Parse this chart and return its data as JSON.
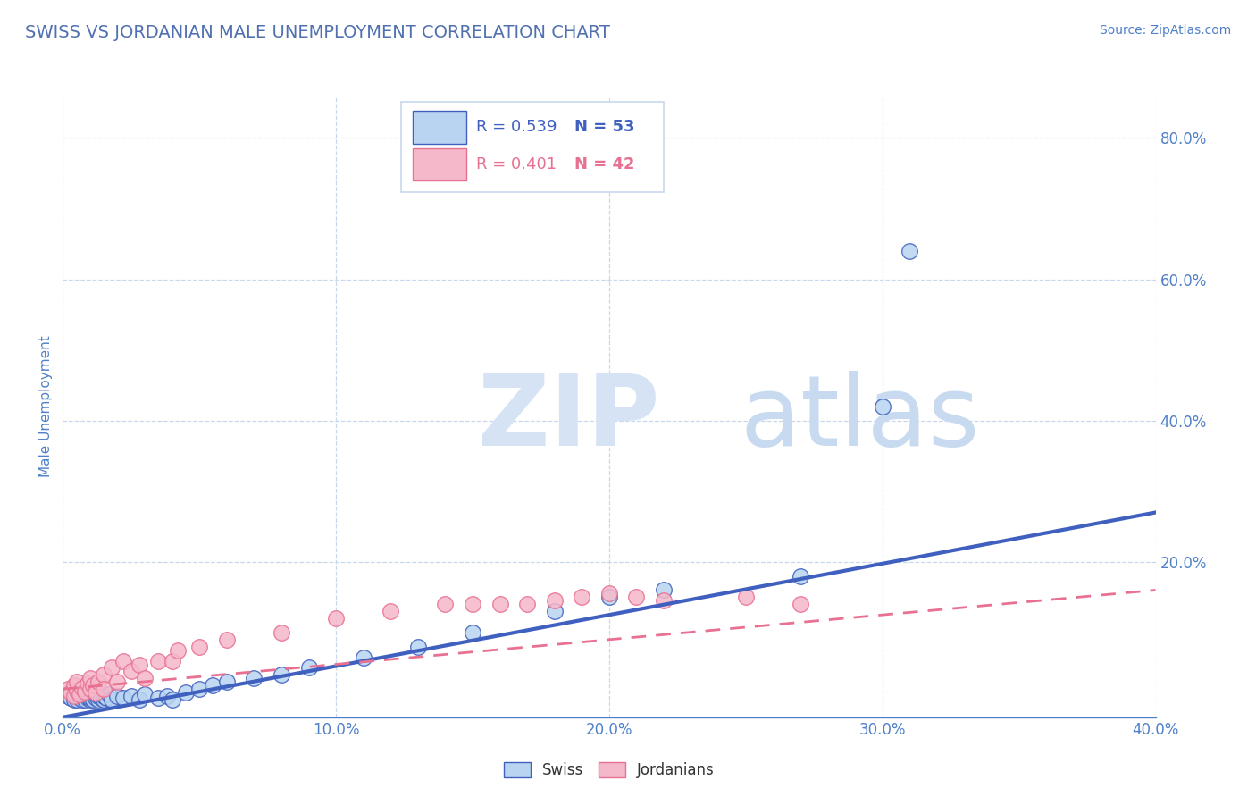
{
  "title": "SWISS VS JORDANIAN MALE UNEMPLOYMENT CORRELATION CHART",
  "source_text": "Source: ZipAtlas.com",
  "ylabel": "Male Unemployment",
  "xlim": [
    0.0,
    0.4
  ],
  "ylim": [
    -0.02,
    0.86
  ],
  "xtick_labels": [
    "0.0%",
    "10.0%",
    "20.0%",
    "30.0%",
    "40.0%"
  ],
  "xtick_vals": [
    0.0,
    0.1,
    0.2,
    0.3,
    0.4
  ],
  "ytick_labels_right": [
    "20.0%",
    "40.0%",
    "60.0%",
    "80.0%"
  ],
  "ytick_vals_right": [
    0.2,
    0.4,
    0.6,
    0.8
  ],
  "legend_r_swiss": "R = 0.539",
  "legend_n_swiss": "N = 53",
  "legend_r_jord": "R = 0.401",
  "legend_n_jord": "N = 42",
  "swiss_color": "#b8d4f0",
  "jordan_color": "#f5b8cb",
  "swiss_line_color": "#4060c0",
  "jordan_line_color": "#e87090",
  "title_color": "#5070b0",
  "axis_color": "#5080c8",
  "grid_color": "#c8d8ec",
  "watermark_zip_color": "#d5e3f5",
  "watermark_atlas_color": "#c8daf0",
  "background_color": "#ffffff",
  "swiss_scatter_x": [
    0.002,
    0.003,
    0.004,
    0.004,
    0.005,
    0.005,
    0.006,
    0.006,
    0.007,
    0.007,
    0.008,
    0.008,
    0.009,
    0.009,
    0.01,
    0.01,
    0.01,
    0.011,
    0.011,
    0.012,
    0.012,
    0.013,
    0.013,
    0.014,
    0.015,
    0.015,
    0.016,
    0.017,
    0.018,
    0.02,
    0.022,
    0.025,
    0.028,
    0.03,
    0.035,
    0.038,
    0.04,
    0.045,
    0.05,
    0.055,
    0.06,
    0.07,
    0.08,
    0.09,
    0.11,
    0.13,
    0.15,
    0.18,
    0.2,
    0.22,
    0.27,
    0.3,
    0.31
  ],
  "swiss_scatter_y": [
    0.01,
    0.008,
    0.012,
    0.005,
    0.01,
    0.005,
    0.008,
    0.012,
    0.005,
    0.01,
    0.008,
    0.005,
    0.012,
    0.008,
    0.005,
    0.01,
    0.008,
    0.012,
    0.005,
    0.008,
    0.012,
    0.005,
    0.01,
    0.008,
    0.005,
    0.01,
    0.008,
    0.012,
    0.005,
    0.01,
    0.008,
    0.01,
    0.005,
    0.012,
    0.008,
    0.01,
    0.005,
    0.015,
    0.02,
    0.025,
    0.03,
    0.035,
    0.04,
    0.05,
    0.065,
    0.08,
    0.1,
    0.13,
    0.15,
    0.16,
    0.18,
    0.42,
    0.64
  ],
  "jordan_scatter_x": [
    0.002,
    0.003,
    0.004,
    0.004,
    0.005,
    0.005,
    0.006,
    0.007,
    0.008,
    0.009,
    0.01,
    0.01,
    0.011,
    0.012,
    0.013,
    0.015,
    0.015,
    0.018,
    0.02,
    0.022,
    0.025,
    0.028,
    0.03,
    0.035,
    0.04,
    0.042,
    0.05,
    0.06,
    0.08,
    0.1,
    0.12,
    0.14,
    0.15,
    0.16,
    0.17,
    0.18,
    0.19,
    0.2,
    0.21,
    0.22,
    0.25,
    0.27
  ],
  "jordan_scatter_y": [
    0.02,
    0.015,
    0.025,
    0.01,
    0.018,
    0.03,
    0.012,
    0.022,
    0.016,
    0.028,
    0.02,
    0.035,
    0.025,
    0.015,
    0.03,
    0.04,
    0.02,
    0.05,
    0.03,
    0.06,
    0.045,
    0.055,
    0.035,
    0.06,
    0.06,
    0.075,
    0.08,
    0.09,
    0.1,
    0.12,
    0.13,
    0.14,
    0.14,
    0.14,
    0.14,
    0.145,
    0.15,
    0.155,
    0.15,
    0.145,
    0.15,
    0.14
  ],
  "swiss_trend_x": [
    0.0,
    0.4
  ],
  "swiss_trend_y": [
    -0.02,
    0.27
  ],
  "jordan_trend_x": [
    0.0,
    0.4
  ],
  "jordan_trend_y": [
    0.02,
    0.16
  ]
}
